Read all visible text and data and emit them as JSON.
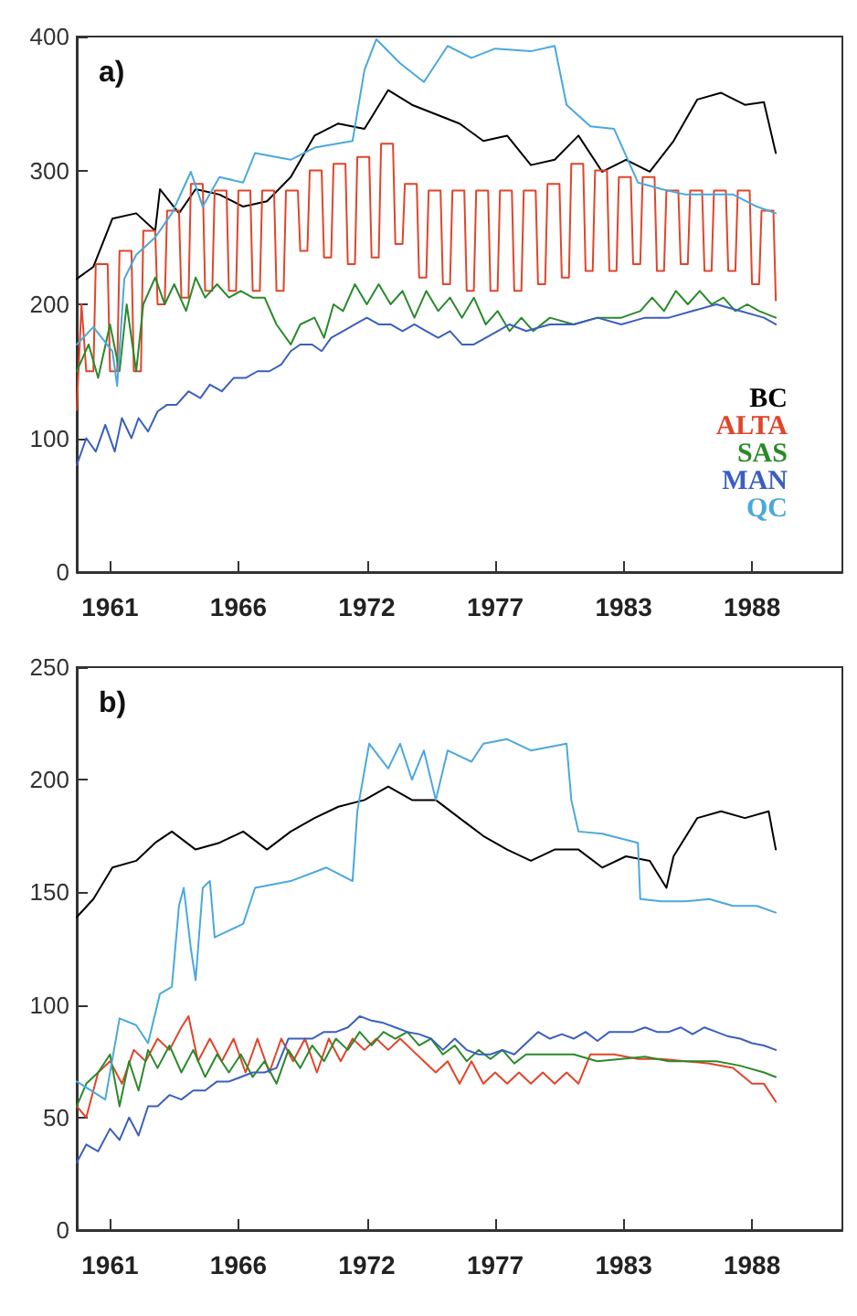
{
  "chart_data": [
    {
      "type": "line",
      "annotations": [
        "a)"
      ],
      "xlim": [
        1959.6,
        1991.8
      ],
      "xticks": [
        {
          "value": 1961,
          "label": "1961"
        },
        {
          "value": 1966.4,
          "label": "1966"
        },
        {
          "value": 1971.8,
          "label": "1972"
        },
        {
          "value": 1977.2,
          "label": "1977"
        },
        {
          "value": 1982.6,
          "label": "1983"
        },
        {
          "value": 1988,
          "label": "1988"
        }
      ],
      "ylim": [
        0,
        400
      ],
      "yticks": [
        0,
        100,
        200,
        300,
        400
      ],
      "legend": "bottom right",
      "marker": "none",
      "line_style": "solid",
      "series": [
        {
          "name": "BC",
          "color": "#000000",
          "x": [
            1959.6,
            1960.3,
            1961.1,
            1962.1,
            1962.9,
            1963.1,
            1963.9,
            1964.6,
            1965.6,
            1966.6,
            1967.6,
            1968.6,
            1969.6,
            1970.6,
            1971.7,
            1972.7,
            1973.7,
            1974.7,
            1975.7,
            1976.7,
            1977.7,
            1978.7,
            1979.7,
            1980.7,
            1981.7,
            1982.7,
            1983.7,
            1984.7,
            1985.7,
            1986.7,
            1987.7,
            1988.5,
            1989.0
          ],
          "values": [
            219,
            228,
            264,
            268,
            255,
            286,
            268,
            286,
            282,
            273,
            277,
            295,
            326,
            335,
            331,
            360,
            349,
            342,
            335,
            322,
            326,
            304,
            308,
            326,
            299,
            308,
            299,
            322,
            353,
            358,
            349,
            351,
            313
          ]
        },
        {
          "name": "ALTA",
          "color": "#e0452a",
          "x": [
            1959.6,
            1959.8,
            1960.0,
            1960.3,
            1960.4,
            1960.9,
            1961.0,
            1961.3,
            1961.4,
            1961.9,
            1962.0,
            1962.3,
            1962.4,
            1962.9,
            1963.0,
            1963.3,
            1963.4,
            1963.9,
            1964.0,
            1964.3,
            1964.4,
            1964.9,
            1965.0,
            1965.3,
            1965.4,
            1965.9,
            1966.0,
            1966.3,
            1966.4,
            1966.9,
            1967.0,
            1967.3,
            1967.4,
            1967.9,
            1968.0,
            1968.3,
            1968.4,
            1968.9,
            1969.0,
            1969.3,
            1969.4,
            1969.9,
            1970.0,
            1970.3,
            1970.4,
            1970.9,
            1971.0,
            1971.3,
            1971.4,
            1971.9,
            1972.0,
            1972.3,
            1972.4,
            1972.9,
            1973.0,
            1973.3,
            1973.4,
            1973.9,
            1974.0,
            1974.3,
            1974.4,
            1974.9,
            1975.0,
            1975.3,
            1975.4,
            1975.9,
            1976.0,
            1976.3,
            1976.4,
            1976.9,
            1977.0,
            1977.3,
            1977.4,
            1977.9,
            1978.0,
            1978.3,
            1978.4,
            1978.9,
            1979.0,
            1979.3,
            1979.4,
            1979.9,
            1980.0,
            1980.3,
            1980.4,
            1980.9,
            1981.0,
            1981.3,
            1981.4,
            1981.9,
            1982.0,
            1982.3,
            1982.4,
            1982.9,
            1983.0,
            1983.3,
            1983.4,
            1983.9,
            1984.0,
            1984.3,
            1984.4,
            1984.9,
            1985.0,
            1985.3,
            1985.4,
            1985.9,
            1986.0,
            1986.3,
            1986.4,
            1986.9,
            1987.0,
            1987.3,
            1987.4,
            1987.9,
            1988.0,
            1988.3,
            1988.4,
            1988.9,
            1989.0
          ],
          "values": [
            121,
            200,
            150,
            150,
            230,
            230,
            150,
            150,
            240,
            240,
            150,
            150,
            255,
            255,
            200,
            200,
            270,
            270,
            205,
            205,
            290,
            290,
            210,
            210,
            285,
            285,
            210,
            210,
            285,
            285,
            210,
            210,
            285,
            285,
            210,
            210,
            285,
            285,
            240,
            240,
            300,
            300,
            235,
            235,
            305,
            305,
            230,
            230,
            310,
            310,
            235,
            235,
            320,
            320,
            245,
            245,
            290,
            290,
            220,
            220,
            285,
            285,
            215,
            215,
            285,
            285,
            210,
            210,
            285,
            285,
            210,
            210,
            285,
            285,
            210,
            210,
            285,
            285,
            215,
            215,
            290,
            290,
            220,
            220,
            305,
            305,
            225,
            225,
            300,
            300,
            225,
            225,
            295,
            295,
            230,
            230,
            295,
            295,
            225,
            225,
            285,
            285,
            230,
            230,
            285,
            285,
            225,
            225,
            285,
            285,
            225,
            225,
            285,
            285,
            215,
            215,
            270,
            270,
            203
          ]
        },
        {
          "name": "SAS",
          "color": "#2a8a2a",
          "x": [
            1959.6,
            1960.1,
            1960.5,
            1961.0,
            1961.4,
            1961.7,
            1962.1,
            1962.4,
            1962.9,
            1963.3,
            1963.7,
            1964.2,
            1964.6,
            1965.0,
            1965.5,
            1966.0,
            1966.5,
            1967.0,
            1967.5,
            1968.0,
            1968.6,
            1969.0,
            1969.6,
            1970.0,
            1970.4,
            1970.8,
            1971.3,
            1971.8,
            1972.3,
            1972.8,
            1973.3,
            1973.8,
            1974.3,
            1974.8,
            1975.3,
            1975.8,
            1976.3,
            1976.8,
            1977.3,
            1977.8,
            1978.3,
            1978.8,
            1979.5,
            1980.5,
            1981.5,
            1982.5,
            1983.3,
            1983.8,
            1984.3,
            1984.8,
            1985.3,
            1985.8,
            1986.3,
            1986.8,
            1987.3,
            1987.8,
            1988.3,
            1989.0
          ],
          "values": [
            150,
            170,
            145,
            185,
            150,
            200,
            150,
            200,
            220,
            200,
            215,
            195,
            220,
            205,
            215,
            205,
            210,
            205,
            205,
            185,
            170,
            185,
            190,
            175,
            200,
            195,
            215,
            200,
            215,
            200,
            210,
            190,
            210,
            195,
            205,
            190,
            205,
            185,
            195,
            180,
            190,
            180,
            190,
            185,
            190,
            190,
            195,
            205,
            195,
            210,
            200,
            210,
            200,
            205,
            195,
            200,
            195,
            190
          ]
        },
        {
          "name": "MAN",
          "color": "#3a5fc0",
          "x": [
            1959.6,
            1960.0,
            1960.4,
            1960.8,
            1961.2,
            1961.5,
            1961.9,
            1962.2,
            1962.6,
            1963.0,
            1963.4,
            1963.8,
            1964.3,
            1964.8,
            1965.2,
            1965.7,
            1966.2,
            1966.7,
            1967.2,
            1967.7,
            1968.2,
            1968.6,
            1969.0,
            1969.5,
            1969.9,
            1970.3,
            1970.8,
            1971.3,
            1971.8,
            1972.3,
            1972.8,
            1973.3,
            1973.8,
            1974.3,
            1974.8,
            1975.3,
            1975.8,
            1976.3,
            1976.8,
            1977.3,
            1977.8,
            1978.5,
            1979.5,
            1980.5,
            1981.5,
            1982.5,
            1983.5,
            1984.5,
            1985.5,
            1986.5,
            1987.5,
            1988.5,
            1989.0
          ],
          "values": [
            80,
            100,
            90,
            110,
            90,
            115,
            100,
            115,
            105,
            120,
            125,
            125,
            135,
            130,
            140,
            135,
            145,
            145,
            150,
            150,
            155,
            165,
            170,
            170,
            165,
            175,
            180,
            185,
            190,
            185,
            185,
            180,
            185,
            180,
            175,
            180,
            170,
            170,
            175,
            180,
            185,
            180,
            185,
            185,
            190,
            185,
            190,
            190,
            195,
            200,
            195,
            190,
            185
          ]
        },
        {
          "name": "QC",
          "color": "#4aa8dc",
          "x": [
            1959.6,
            1960.3,
            1961.1,
            1961.3,
            1961.6,
            1962.1,
            1962.9,
            1963.6,
            1964.4,
            1964.9,
            1965.6,
            1966.6,
            1967.1,
            1968.6,
            1969.6,
            1971.2,
            1971.7,
            1972.2,
            1973.2,
            1974.2,
            1975.2,
            1976.2,
            1977.2,
            1978.7,
            1979.7,
            1980.2,
            1981.2,
            1982.2,
            1983.2,
            1984.2,
            1985.2,
            1986.2,
            1987.2,
            1988.2,
            1989.0
          ],
          "values": [
            170,
            183,
            165,
            139,
            219,
            237,
            250,
            268,
            299,
            273,
            295,
            291,
            313,
            308,
            317,
            322,
            375,
            398,
            380,
            366,
            393,
            384,
            391,
            389,
            393,
            349,
            333,
            331,
            291,
            286,
            282,
            282,
            282,
            273,
            268
          ]
        }
      ]
    },
    {
      "type": "line",
      "annotations": [
        "b)"
      ],
      "xlim": [
        1959.6,
        1991.8
      ],
      "xticks": [
        {
          "value": 1961,
          "label": "1961"
        },
        {
          "value": 1966.4,
          "label": "1966"
        },
        {
          "value": 1971.8,
          "label": "1972"
        },
        {
          "value": 1977.2,
          "label": "1977"
        },
        {
          "value": 1982.6,
          "label": "1983"
        },
        {
          "value": 1988,
          "label": "1988"
        }
      ],
      "ylim": [
        0,
        250
      ],
      "yticks": [
        0,
        50,
        100,
        150,
        200,
        250
      ],
      "marker": "none",
      "line_style": "solid",
      "series": [
        {
          "color": "#000000",
          "x": [
            1959.6,
            1960.3,
            1961.1,
            1962.1,
            1962.9,
            1963.6,
            1964.6,
            1965.6,
            1966.6,
            1967.6,
            1968.6,
            1969.6,
            1970.6,
            1971.7,
            1972.7,
            1973.7,
            1974.7,
            1975.7,
            1976.7,
            1977.7,
            1978.7,
            1979.7,
            1980.7,
            1981.7,
            1982.7,
            1983.7,
            1984.4,
            1984.7,
            1985.7,
            1986.7,
            1987.7,
            1988.7,
            1989.0
          ],
          "values": [
            139,
            147,
            161,
            164,
            172,
            177,
            169,
            172,
            177,
            169,
            177,
            183,
            188,
            191,
            197,
            191,
            191,
            183,
            175,
            169,
            164,
            169,
            169,
            161,
            166,
            164,
            152,
            166,
            183,
            186,
            183,
            186,
            169
          ]
        },
        {
          "color": "#e0452a",
          "x": [
            1959.6,
            1960.0,
            1960.5,
            1961.0,
            1961.5,
            1962.0,
            1962.5,
            1963.0,
            1963.5,
            1964.0,
            1964.3,
            1964.7,
            1965.2,
            1965.7,
            1966.2,
            1966.7,
            1967.2,
            1967.7,
            1968.2,
            1968.7,
            1969.2,
            1969.7,
            1970.2,
            1970.7,
            1971.2,
            1971.7,
            1972.2,
            1972.7,
            1973.2,
            1973.7,
            1974.2,
            1974.7,
            1975.2,
            1975.7,
            1976.2,
            1976.7,
            1977.2,
            1977.7,
            1978.2,
            1978.7,
            1979.2,
            1979.7,
            1980.2,
            1980.7,
            1981.2,
            1982.2,
            1983.2,
            1984.2,
            1985.2,
            1986.2,
            1987.2,
            1988.0,
            1988.5,
            1989.0
          ],
          "values": [
            55,
            50,
            70,
            75,
            65,
            80,
            75,
            85,
            80,
            90,
            95,
            75,
            85,
            75,
            85,
            70,
            85,
            70,
            85,
            75,
            85,
            70,
            85,
            75,
            85,
            80,
            85,
            80,
            85,
            80,
            75,
            70,
            75,
            65,
            75,
            65,
            70,
            65,
            70,
            65,
            70,
            65,
            70,
            65,
            78,
            78,
            76,
            76,
            75,
            74,
            72,
            65,
            65,
            57
          ]
        },
        {
          "color": "#2a8a2a",
          "x": [
            1959.6,
            1960.0,
            1960.5,
            1961.0,
            1961.4,
            1961.8,
            1962.2,
            1962.6,
            1963.0,
            1963.5,
            1964.0,
            1964.5,
            1965.0,
            1965.5,
            1966.0,
            1966.5,
            1967.0,
            1967.5,
            1968.0,
            1968.5,
            1969.0,
            1969.5,
            1970.0,
            1970.5,
            1971.0,
            1971.5,
            1972.0,
            1972.5,
            1973.0,
            1973.5,
            1974.0,
            1974.5,
            1975.0,
            1975.5,
            1976.0,
            1976.5,
            1977.0,
            1977.5,
            1978.0,
            1978.5,
            1979.5,
            1980.5,
            1981.5,
            1982.5,
            1983.5,
            1984.5,
            1985.5,
            1986.5,
            1987.5,
            1988.5,
            1989.0
          ],
          "values": [
            55,
            65,
            70,
            78,
            55,
            75,
            62,
            80,
            72,
            82,
            70,
            80,
            68,
            78,
            70,
            78,
            68,
            75,
            65,
            80,
            72,
            82,
            75,
            85,
            80,
            88,
            82,
            88,
            85,
            88,
            82,
            85,
            78,
            82,
            75,
            80,
            76,
            80,
            74,
            78,
            78,
            78,
            75,
            76,
            77,
            75,
            75,
            75,
            73,
            70,
            68
          ]
        },
        {
          "color": "#3a5fc0",
          "x": [
            1959.6,
            1960.0,
            1960.5,
            1961.0,
            1961.4,
            1961.8,
            1962.2,
            1962.6,
            1963.0,
            1963.5,
            1964.0,
            1964.5,
            1965.0,
            1965.5,
            1966.0,
            1966.5,
            1967.0,
            1967.5,
            1968.0,
            1968.5,
            1969.0,
            1969.5,
            1970.0,
            1970.5,
            1971.0,
            1971.5,
            1972.0,
            1972.5,
            1973.0,
            1973.5,
            1974.0,
            1974.5,
            1975.0,
            1975.5,
            1976.0,
            1976.5,
            1977.0,
            1977.5,
            1978.0,
            1978.5,
            1979.0,
            1979.5,
            1980.0,
            1980.5,
            1981.0,
            1981.5,
            1982.0,
            1982.5,
            1983.0,
            1983.5,
            1984.0,
            1984.5,
            1985.0,
            1985.5,
            1986.0,
            1986.5,
            1987.0,
            1987.5,
            1988.0,
            1988.5,
            1989.0
          ],
          "values": [
            30,
            38,
            35,
            45,
            40,
            50,
            42,
            55,
            55,
            60,
            58,
            62,
            62,
            66,
            66,
            68,
            70,
            70,
            72,
            85,
            85,
            85,
            88,
            88,
            90,
            95,
            93,
            92,
            90,
            88,
            87,
            85,
            80,
            85,
            80,
            78,
            78,
            80,
            78,
            83,
            88,
            85,
            87,
            85,
            88,
            84,
            88,
            88,
            88,
            90,
            88,
            88,
            90,
            87,
            90,
            88,
            86,
            85,
            83,
            82,
            80
          ]
        },
        {
          "color": "#4aa8dc",
          "x": [
            1959.6,
            1960.8,
            1961.4,
            1962.1,
            1962.6,
            1963.1,
            1963.6,
            1963.9,
            1964.1,
            1964.4,
            1964.6,
            1964.9,
            1965.2,
            1965.4,
            1966.6,
            1967.1,
            1968.6,
            1970.1,
            1971.2,
            1971.4,
            1971.9,
            1972.7,
            1973.2,
            1973.7,
            1974.2,
            1974.7,
            1975.2,
            1976.2,
            1976.7,
            1977.7,
            1978.7,
            1979.7,
            1980.2,
            1980.4,
            1980.7,
            1981.7,
            1983.2,
            1983.3,
            1984.2,
            1985.2,
            1986.2,
            1987.2,
            1988.2,
            1989.0
          ],
          "values": [
            66,
            58,
            94,
            91,
            83,
            105,
            108,
            144,
            152,
            125,
            111,
            152,
            155,
            130,
            136,
            152,
            155,
            161,
            155,
            186,
            216,
            205,
            216,
            200,
            213,
            191,
            213,
            208,
            216,
            218,
            213,
            215,
            216,
            191,
            177,
            176,
            172,
            147,
            146,
            146,
            147,
            144,
            144,
            141
          ]
        }
      ]
    }
  ]
}
